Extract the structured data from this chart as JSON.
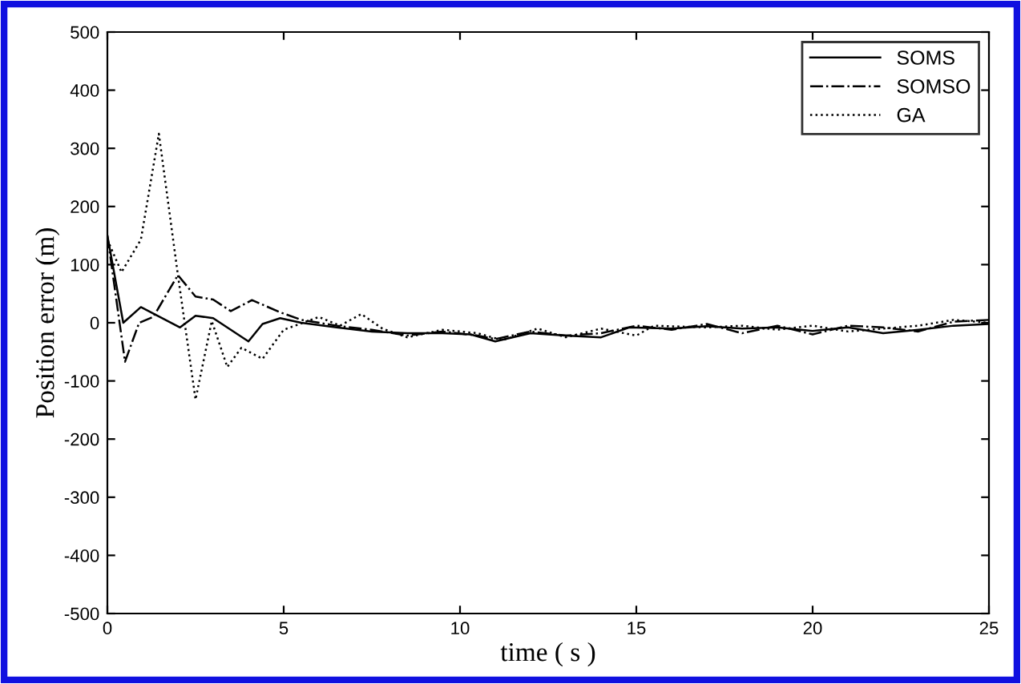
{
  "chart_data": {
    "type": "line",
    "xlabel": "time ( s )",
    "ylabel": "Position error (m)",
    "xlim": [
      0,
      25
    ],
    "ylim": [
      -500,
      500
    ],
    "xticks": [
      0,
      5,
      10,
      15,
      20,
      25
    ],
    "yticks": [
      -500,
      -400,
      -300,
      -200,
      -100,
      0,
      100,
      200,
      300,
      400,
      500
    ],
    "grid": false,
    "legend": "top right",
    "marker": "none",
    "series": [
      {
        "name": "SOMS",
        "color": "#000000",
        "line_style": "solid",
        "x": [
          0,
          0.45,
          0.95,
          2.06,
          2.5,
          3.0,
          4.0,
          4.4,
          4.9,
          5.5,
          6.5,
          7.5,
          8.5,
          9.5,
          10.3,
          11,
          12,
          13,
          14,
          14.8,
          16,
          17,
          18,
          19,
          20,
          21,
          22,
          23,
          24,
          25
        ],
        "values": [
          150,
          0,
          27,
          -8,
          12,
          8,
          -32,
          -2,
          8,
          0,
          -8,
          -15,
          -18,
          -18,
          -20,
          -32,
          -18,
          -22,
          -25,
          -8,
          -10,
          -6,
          -10,
          -8,
          -14,
          -8,
          -18,
          -12,
          -5,
          -2
        ]
      },
      {
        "name": "SOMSO",
        "color": "#000000",
        "line_style": "dashdot",
        "x": [
          0,
          0.5,
          0.9,
          1.3,
          2.0,
          2.5,
          3.0,
          3.5,
          4.1,
          4.9,
          5.5,
          6.5,
          7.5,
          8.5,
          9.5,
          10.5,
          11,
          12,
          13,
          14,
          15,
          16,
          17,
          18,
          19,
          20,
          21,
          22,
          23,
          24,
          25
        ],
        "values": [
          150,
          -67,
          0,
          10,
          82,
          45,
          40,
          20,
          39,
          18,
          5,
          -5,
          -12,
          -22,
          -15,
          -22,
          -28,
          -15,
          -22,
          -18,
          -5,
          -12,
          -2,
          -18,
          -5,
          -20,
          -5,
          -8,
          -15,
          2,
          5
        ]
      },
      {
        "name": "GA",
        "color": "#000000",
        "line_style": "dotted",
        "x": [
          0,
          0.4,
          0.95,
          1.46,
          2.0,
          2.5,
          2.96,
          3.4,
          3.8,
          4.4,
          5.0,
          6.0,
          6.6,
          7.2,
          7.8,
          8.5,
          9.5,
          10.5,
          11.2,
          12.2,
          13,
          14,
          15,
          15.5,
          17,
          18,
          19,
          20,
          21,
          22,
          23,
          24,
          25
        ],
        "values": [
          143,
          87,
          143,
          325,
          82,
          -132,
          3,
          -76,
          -43,
          -62,
          -12,
          10,
          -5,
          15,
          -10,
          -25,
          -12,
          -18,
          -30,
          -10,
          -25,
          -10,
          -22,
          -5,
          -8,
          -5,
          -12,
          -5,
          -15,
          -10,
          -5,
          5,
          0
        ]
      }
    ]
  }
}
